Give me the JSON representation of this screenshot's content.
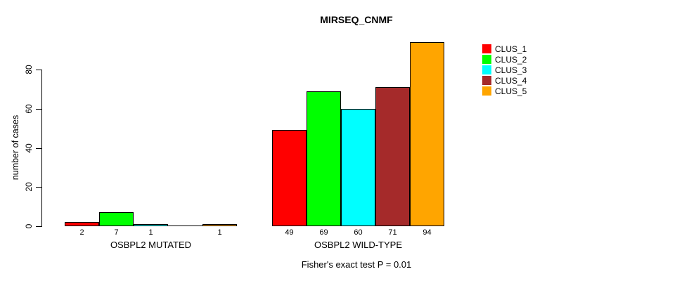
{
  "figure": {
    "background": "#FFFFFF"
  },
  "chart_data": {
    "type": "bar",
    "title": "MIRSEQ_CNMF",
    "ylabel": "number of cases",
    "xlabel": "",
    "ylim": [
      0,
      94
    ],
    "yticks": [
      0,
      20,
      40,
      60,
      80
    ],
    "grid": false,
    "legend_position": "top-right-outside",
    "series_names": [
      "CLUS_1",
      "CLUS_2",
      "CLUS_3",
      "CLUS_4",
      "CLUS_5"
    ],
    "series_colors": [
      "#FF0000",
      "#00FF00",
      "#00FFFF",
      "#A52A2A",
      "#FFA500"
    ],
    "bar_border_color": "#000000",
    "categories": [
      "OSBPL2 MUTATED",
      "OSBPL2 WILD-TYPE"
    ],
    "groups": [
      {
        "label": "OSBPL2 MUTATED",
        "values": [
          2,
          7,
          1,
          0,
          1
        ],
        "bar_labels": [
          "2",
          "7",
          "1",
          "",
          "1"
        ]
      },
      {
        "label": "OSBPL2 WILD-TYPE",
        "values": [
          49,
          69,
          60,
          71,
          94
        ],
        "bar_labels": [
          "49",
          "69",
          "60",
          "71",
          "94"
        ]
      }
    ],
    "caption": "Fisher's exact test P = 0.01"
  }
}
